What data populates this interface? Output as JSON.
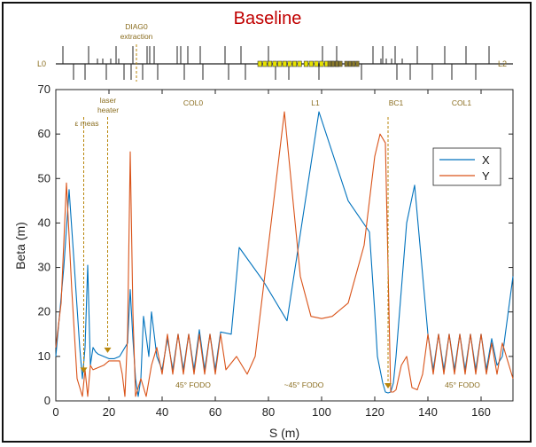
{
  "title": "Baseline",
  "lattice": {
    "left_label": "L0",
    "right_label": "L2",
    "diag_label_line1": "DIAG0",
    "diag_label_line2": "extraction"
  },
  "annotations": {
    "emeas": "ε meas",
    "laser_line1": "laser",
    "laser_line2": "heater",
    "col0": "COL0",
    "l1": "L1",
    "bc1": "BC1",
    "col1": "COL1",
    "fodo_left": "45° FODO",
    "fodo_mid": "~45° FODO",
    "fodo_right": "45° FODO"
  },
  "colors": {
    "x_series": "#0072BD",
    "y_series": "#D95319",
    "annotation": "#8a6d1f",
    "marker": "#b8860b",
    "title": "#c00000"
  },
  "chart_data": {
    "type": "line",
    "title": "Baseline",
    "xlabel": "S (m)",
    "ylabel": "Beta (m)",
    "xlim": [
      0,
      172
    ],
    "ylim": [
      0,
      70
    ],
    "xticks": [
      0,
      20,
      40,
      60,
      80,
      100,
      120,
      140,
      160
    ],
    "yticks": [
      0,
      10,
      20,
      30,
      40,
      50,
      60,
      70
    ],
    "legend": "right",
    "series": [
      {
        "name": "X",
        "color": "#0072BD",
        "x": [
          0,
          3,
          5,
          7,
          9,
          10,
          11,
          12,
          13,
          14,
          15,
          16,
          18,
          20,
          22,
          24,
          26,
          27,
          28,
          29,
          30,
          31,
          32,
          33,
          35,
          36,
          38,
          40,
          42,
          44,
          46,
          48,
          50,
          52,
          54,
          56,
          58,
          60,
          62,
          66,
          69,
          78,
          87,
          99,
          110,
          118,
          120,
          121,
          123,
          124,
          125,
          126,
          127,
          128,
          132,
          135,
          140,
          142,
          144,
          146,
          148,
          150,
          152,
          154,
          156,
          158,
          160,
          162,
          164,
          166,
          168,
          172
        ],
        "values": [
          10,
          30,
          47.5,
          30,
          12,
          5,
          12,
          30.5,
          8,
          12,
          11,
          10.5,
          10,
          9.5,
          9.5,
          10,
          12,
          13,
          25,
          14,
          5,
          1,
          5,
          19,
          10,
          20,
          10,
          7,
          14,
          7,
          15,
          7,
          15,
          7,
          16,
          7,
          15,
          7,
          15.5,
          15,
          34.5,
          27,
          18,
          65,
          45,
          38,
          20,
          10,
          4,
          2,
          1.8,
          2,
          4,
          10,
          40,
          48.5,
          15,
          7,
          15,
          7,
          15,
          7,
          15,
          7,
          15,
          7,
          15,
          7,
          14,
          8,
          10,
          28
        ]
      },
      {
        "name": "Y",
        "color": "#D95319",
        "x": [
          0,
          2,
          4,
          6,
          8,
          10,
          11,
          12,
          13,
          14,
          16,
          18,
          20,
          22,
          24,
          25,
          26,
          27,
          28,
          29,
          30,
          32,
          34,
          36,
          38,
          40,
          42,
          44,
          46,
          48,
          50,
          52,
          54,
          56,
          58,
          60,
          62,
          64,
          68,
          72,
          75,
          86,
          92,
          96,
          100,
          104,
          110,
          116,
          120,
          122,
          124,
          125,
          126,
          127,
          128,
          130,
          132,
          134,
          136,
          138,
          140,
          142,
          144,
          146,
          148,
          150,
          152,
          154,
          156,
          158,
          160,
          162,
          164,
          166,
          168,
          172
        ],
        "values": [
          12,
          22,
          49,
          25,
          5,
          1,
          7,
          1,
          8,
          7,
          7.5,
          8,
          9,
          9,
          9,
          6,
          1,
          15,
          56,
          20,
          1,
          5,
          1,
          8,
          12,
          6,
          15,
          6,
          15,
          6,
          15,
          6,
          15,
          6,
          15,
          6,
          15,
          7,
          10,
          6,
          10,
          65,
          28,
          19,
          18.5,
          19,
          22,
          35,
          55,
          60,
          58,
          30,
          2,
          2,
          2.5,
          8,
          10,
          3,
          2.5,
          6,
          15,
          6,
          15,
          6,
          15,
          6,
          15,
          6,
          15,
          6,
          15,
          6,
          13,
          6,
          13,
          5
        ]
      }
    ],
    "markers": [
      {
        "x": 10.5,
        "y": 6.5,
        "label_key": "emeas"
      },
      {
        "x": 19.5,
        "y": 11,
        "label_key": "laser"
      },
      {
        "x": 125,
        "y": 3,
        "label_key": "bc1"
      }
    ]
  }
}
